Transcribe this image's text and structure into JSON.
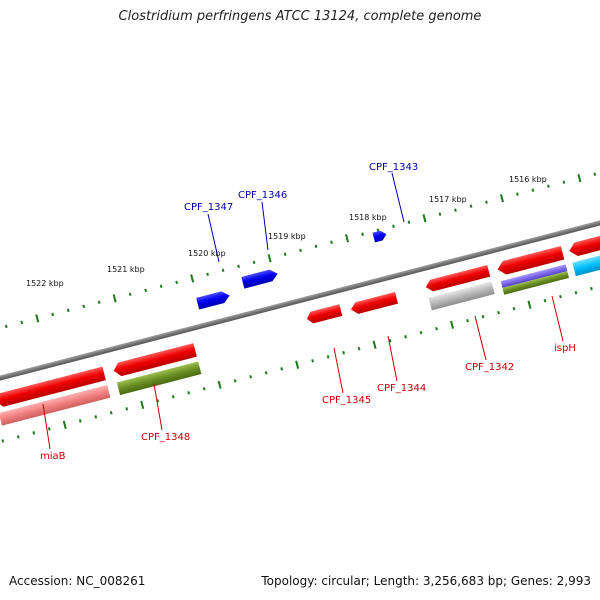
{
  "title": "Clostridium perfringens ATCC 13124, complete genome",
  "footer": {
    "accession": "Accession: NC_008261",
    "summary": "Topology: circular; Length: 3,256,683 bp; Genes: 2,993"
  },
  "colors": {
    "backbone": "#7a7a7a",
    "forward_gene": "#0000ee",
    "reverse_gene": "#ee0000",
    "label_forward": "#0000aa",
    "label_reverse": "#cc0000",
    "tick": "#1a7a1a",
    "track_pink": "#f08080",
    "track_olive": "#6b8e23",
    "track_gray": "#b8b8b8",
    "track_purple": "#7b68ee",
    "track_cyan": "#00bfff"
  },
  "scale_labels": [
    "1522 kbp",
    "1521 kbp",
    "1520 kbp",
    "1519 kbp",
    "1518 kbp",
    "1517 kbp",
    "1516 kbp"
  ],
  "gene_labels": [
    {
      "name": "CPF_1347",
      "strand": "forward"
    },
    {
      "name": "CPF_1346",
      "strand": "forward"
    },
    {
      "name": "CPF_1343",
      "strand": "forward"
    },
    {
      "name": "CPF_1345",
      "strand": "reverse"
    },
    {
      "name": "CPF_1344",
      "strand": "reverse"
    },
    {
      "name": "CPF_1342",
      "strand": "reverse"
    },
    {
      "name": "ispH",
      "strand": "reverse"
    },
    {
      "name": "CPF_1348",
      "strand": "reverse"
    },
    {
      "name": "miaB",
      "strand": "reverse"
    }
  ]
}
